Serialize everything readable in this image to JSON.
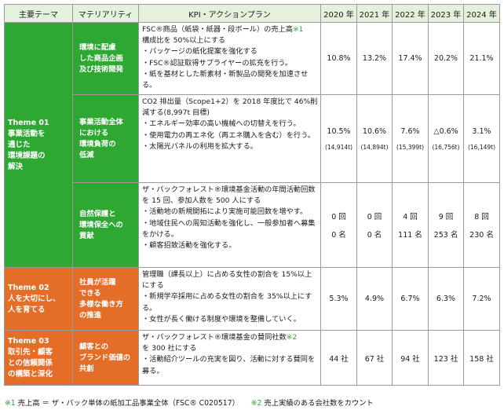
{
  "header": {
    "theme": "主要テーマ",
    "materiality": "マテリアリティ",
    "kpi": "KPI・アクションプラン",
    "y2020": "2020 年",
    "y2021": "2021 年",
    "y2022": "2022 年",
    "y2023": "2023 年",
    "y2024": "2024 年"
  },
  "theme1": {
    "name": "Theme 01\n事業活動を\n通じた\n環境課題の\n解決"
  },
  "row1": {
    "materiality": "環境に配慮\nした商品企画\n及び技術開発",
    "kpi_title": "FSC®商品（紙袋・紙器・段ボール）の売上高",
    "kpi_note": "※1",
    "kpi_lines": [
      "構成比を 50%以上にする",
      "・パッケージの紙化提案を強化する",
      "・FSC®認証取得サプライヤーの拡充を行う。",
      "・紙を基材とした新素材・新製品の開発を加速させる。"
    ],
    "values": [
      "10.8%",
      "13.2%",
      "17.4%",
      "20.2%",
      "21.1%"
    ]
  },
  "row2": {
    "materiality": "事業活動全体\nにおける\n環境負荷の\n低減",
    "kpi_lines": [
      "CO2 排出量（Scope1+2）を 2018 年度比で 46%削減する(8,997t 目標)",
      "・エネルギー効率の高い機械への切替えを行う。",
      "・使用電力の再エネ化（再エネ購入を含む）を行う。",
      "・太陽光パネルの利用を拡大する。"
    ],
    "values": [
      "10.5%",
      "10.6%",
      "7.6%",
      "△0.6%",
      "3.1%"
    ],
    "tonnes": [
      "(14,914t)",
      "(14,894t)",
      "(15,399t)",
      "(16,756t)",
      "(16,149t)"
    ]
  },
  "row3": {
    "materiality": "自然保護と\n環境保全への\n貢献",
    "kpi_lines": [
      "ザ・パックフォレスト®環境基金活動の年間活動回数を 15 回、参加人数を 500 人にする",
      "・活動地の新規開拓により実施可能回数を増やす。",
      "・地域住民への周知活動を強化し、一般参加者へ募集をかける。",
      "・顧客招致活動を強化する。"
    ],
    "counts": [
      "0 回",
      "0 回",
      "4 回",
      "9 回",
      "8 回"
    ],
    "people": [
      "0 名",
      "0 名",
      "111 名",
      "253 名",
      "230 名"
    ]
  },
  "theme2": {
    "name": "Theme 02\n人を大切にし、\n人を育てる"
  },
  "row4": {
    "materiality": "社員が活躍\nできる\n多様な働き方\nの推進",
    "kpi_lines": [
      "管理職（課長以上）に占める女性の割合を 15%以上にする",
      "・新規学卒採用に占める女性の割合を 35%以上にする。",
      "・女性が長く働ける制度や環境を整備していく。"
    ],
    "values": [
      "5.3%",
      "4.9%",
      "6.7%",
      "6.3%",
      "7.2%"
    ]
  },
  "theme3": {
    "name": "Theme 03\n取引先・顧客\nとの信頼関係\nの構築と深化"
  },
  "row5": {
    "materiality": "顧客との\nブランド価値の\n共創",
    "kpi_title": "ザ・パックフォレスト®環境基金の賛同社数",
    "kpi_note": "※2",
    "kpi_lines": [
      "を 300 社にする",
      "・活動紹介ツールの充実を図り、活動に対する賛同を募る。"
    ],
    "values": [
      "44 社",
      "67 社",
      "94 社",
      "123 社",
      "158 社"
    ]
  },
  "footnote": {
    "n1": "※1",
    "t1": " 売上高 ＝ ザ・パック単体の紙加工品事業全体（FSC® C020517）",
    "n2": "※2",
    "t2": " 売上実績のある会社数をカウント"
  },
  "colors": {
    "green": "#2ea832",
    "orange": "#e46d27",
    "header_bg": "#e4f1dc"
  }
}
